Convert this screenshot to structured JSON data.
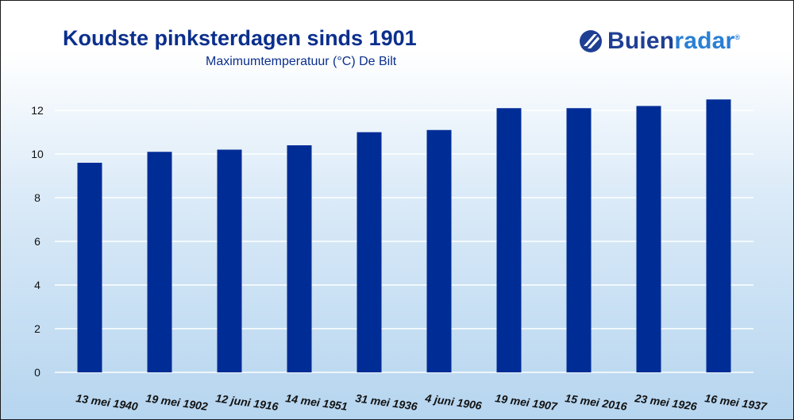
{
  "brand": {
    "name_part1": "Buien",
    "name_part2": "radar",
    "registered": "®",
    "icon": "buienradar-logo-icon"
  },
  "chart_data": {
    "type": "bar",
    "title": "Koudste pinksterdagen sinds 1901",
    "subtitle": "Maximumtemperatuur (°C) De Bilt",
    "xlabel": "",
    "ylabel": "",
    "categories": [
      "13 mei 1940",
      "19 mei 1902",
      "12 juni 1916",
      "14 mei 1951",
      "31 mei 1936",
      "4 juni 1906",
      "19 mei 1907",
      "15 mei 2016",
      "23 mei 1926",
      "16 mei 1937"
    ],
    "values": [
      9.6,
      10.1,
      10.2,
      10.4,
      11.0,
      11.1,
      12.1,
      12.1,
      12.2,
      12.5
    ],
    "ylim": [
      0,
      12
    ],
    "yticks": [
      0,
      2,
      4,
      6,
      8,
      10,
      12
    ],
    "grid": true,
    "legend": "none",
    "bar_color": "#002c96",
    "grid_color": "#ffffff"
  }
}
